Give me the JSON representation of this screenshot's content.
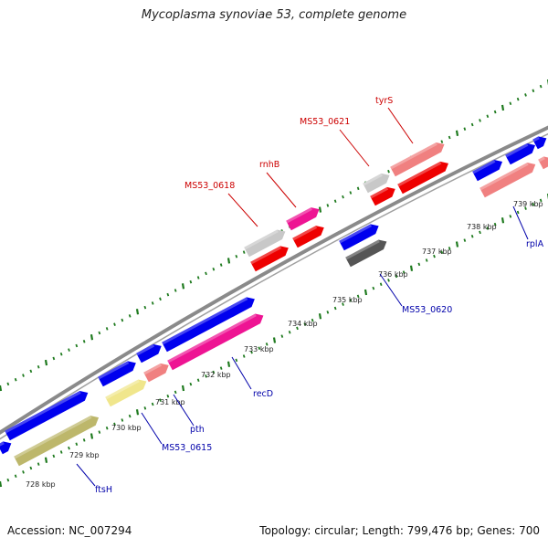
{
  "title": "Mycoplasma synoviae 53, complete genome",
  "footer": {
    "accession": "Accession: NC_007294",
    "info": "Topology: circular; Length: 799,476 bp; Genes: 700"
  },
  "colors": {
    "backbone": "#8a8a8a",
    "tick": "#1e7a1e",
    "label_red": "#cc0000",
    "label_blue": "#0000aa",
    "blue": "#0000ee",
    "red": "#ee0000",
    "pink": "#f08080",
    "magenta": "#ee1493",
    "khaki": "#bdb76b",
    "pale_yellow": "#f0e68c",
    "light_gray": "#c8c8c8",
    "dark_gray": "#555555"
  },
  "ticks": [
    {
      "kbp": 728,
      "label": "728 kbp"
    },
    {
      "kbp": 729,
      "label": "729 kbp"
    },
    {
      "kbp": 730,
      "label": "730 kbp"
    },
    {
      "kbp": 731,
      "label": "731 kbp"
    },
    {
      "kbp": 732,
      "label": "732 kbp"
    },
    {
      "kbp": 733,
      "label": "733 kbp"
    },
    {
      "kbp": 734,
      "label": "734 kbp"
    },
    {
      "kbp": 735,
      "label": "735 kbp"
    },
    {
      "kbp": 736,
      "label": "736 kbp"
    },
    {
      "kbp": 737,
      "label": "737 kbp"
    },
    {
      "kbp": 738,
      "label": "738 kbp"
    },
    {
      "kbp": 739,
      "label": "739 kbp"
    }
  ],
  "gene_labels": [
    {
      "text": "ftsH",
      "color": "label_blue"
    },
    {
      "text": "MS53_0615",
      "color": "label_blue"
    },
    {
      "text": "pth",
      "color": "label_blue"
    },
    {
      "text": "recD",
      "color": "label_blue"
    },
    {
      "text": "MS53_0620",
      "color": "label_blue"
    },
    {
      "text": "rplA",
      "color": "label_blue"
    },
    {
      "text": "MS53_0618",
      "color": "label_red"
    },
    {
      "text": "rnhB",
      "color": "label_red"
    },
    {
      "text": "MS53_0621",
      "color": "label_red"
    },
    {
      "text": "tyrS",
      "color": "label_red"
    }
  ]
}
